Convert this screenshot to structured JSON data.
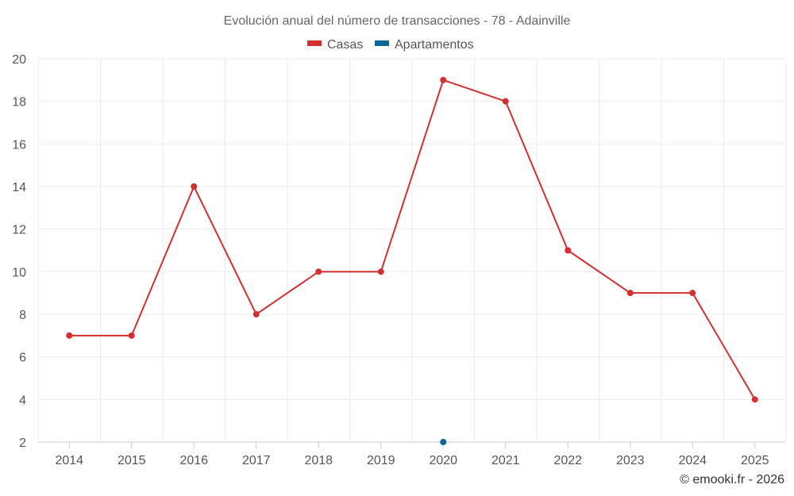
{
  "chart_data": {
    "type": "line",
    "title": "Evolución anual del número de transacciones - 78 - Adainville",
    "categories": [
      "2014",
      "2015",
      "2016",
      "2017",
      "2018",
      "2019",
      "2020",
      "2021",
      "2022",
      "2023",
      "2024",
      "2025"
    ],
    "series": [
      {
        "name": "Casas",
        "color": "#d32f2f",
        "values": [
          7,
          7,
          14,
          8,
          10,
          10,
          19,
          18,
          11,
          9,
          9,
          4
        ]
      },
      {
        "name": "Apartamentos",
        "color": "#0d6699",
        "values": [
          null,
          null,
          null,
          null,
          null,
          null,
          2,
          null,
          null,
          null,
          null,
          null
        ]
      }
    ],
    "ylim": [
      2,
      20
    ],
    "yticks": [
      2,
      4,
      6,
      8,
      10,
      12,
      14,
      16,
      18,
      20
    ],
    "xlabel": "",
    "ylabel": "",
    "grid": true,
    "legend": "top-center"
  },
  "credit": "© emooki.fr - 2026"
}
